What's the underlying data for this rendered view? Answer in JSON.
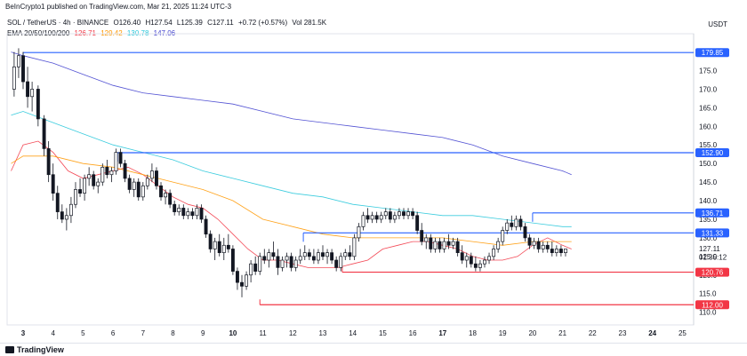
{
  "header": {
    "published": "BeInCrypto1 published on TradingView.com, Mar 21, 2025 11:24 UTC-3",
    "symbol": "SOL / TetherUS · 4h · BINANCE",
    "o_label": "O",
    "o_value": "126.40",
    "h_label": "H",
    "h_value": "127.54",
    "l_label": "L",
    "l_value": "125.39",
    "c_label": "C",
    "c_value": "127.11",
    "change": "+0.72 (+0.57%)",
    "vol": "Vol 281.5K",
    "ema_label": "EMA 20/50/100/200",
    "ema_values": [
      "126.71",
      "129.42",
      "130.78",
      "147.06"
    ],
    "currency": "USDT"
  },
  "footer": {
    "brand": "TradingView"
  },
  "chart_data": {
    "type": "candlestick",
    "x_ticks": [
      "3",
      "4",
      "5",
      "6",
      "7",
      "8",
      "9",
      "10",
      "11",
      "12",
      "13",
      "14",
      "15",
      "16",
      "17",
      "18",
      "19",
      "20",
      "21",
      "22",
      "23",
      "24",
      "25"
    ],
    "bold_x_ticks": [
      "3",
      "10",
      "17",
      "24"
    ],
    "y_ticks": [
      110,
      115,
      120,
      125,
      130,
      135,
      140,
      145,
      150,
      155,
      160,
      165,
      170,
      175
    ],
    "ylim": [
      108,
      183
    ],
    "colors": {
      "up": "#ffffff",
      "down": "#131722",
      "ema20": "#f23645",
      "ema50": "#ff9800",
      "ema100": "#26c6da",
      "ema200": "#3f3fce",
      "resistance": "#2962ff",
      "support": "#f23645"
    },
    "levels": [
      {
        "value": 179.85,
        "label": "179.85",
        "kind": "resistance",
        "x_start": 3.0
      },
      {
        "value": 152.9,
        "label": "152.90",
        "kind": "resistance",
        "x_start": 6.15
      },
      {
        "value": 136.71,
        "label": "136.71",
        "kind": "resistance",
        "x_start": 20.0
      },
      {
        "value": 131.33,
        "label": "131.33",
        "kind": "resistance",
        "x_start": 12.35
      },
      {
        "value": 120.76,
        "label": "120.76",
        "kind": "support",
        "x_start": 13.65
      },
      {
        "value": 112.0,
        "label": "112.00",
        "kind": "support",
        "x_start": 10.9
      }
    ],
    "price_tags": [
      {
        "label": "127.11",
        "value": 127.11
      },
      {
        "label": "01:35:12",
        "value": 124.8
      }
    ],
    "ema": {
      "ema20": {
        "name": "EMA 20",
        "x": [
          2.6,
          3.0,
          3.5,
          4.0,
          4.5,
          5.0,
          5.5,
          6.0,
          6.5,
          7.0,
          7.5,
          8.0,
          8.5,
          9.0,
          9.5,
          10.0,
          10.5,
          11.0,
          11.5,
          12.0,
          12.5,
          13.0,
          13.5,
          14.0,
          14.5,
          15.0,
          15.5,
          16.0,
          16.5,
          17.0,
          17.5,
          18.0,
          18.5,
          19.0,
          19.5,
          20.0,
          20.5,
          21.0,
          21.3
        ],
        "y": [
          148,
          155,
          156,
          153,
          148,
          146,
          147,
          148,
          149,
          147,
          144,
          141,
          139,
          138,
          135,
          131,
          127,
          124,
          124,
          123,
          122,
          122,
          122,
          123,
          124,
          127,
          128,
          129,
          129,
          128,
          127,
          125,
          124,
          124,
          125,
          128,
          130,
          128,
          127
        ]
      },
      "ema50": {
        "name": "EMA 50",
        "x": [
          2.6,
          3.0,
          4.0,
          5.0,
          6.0,
          7.0,
          8.0,
          9.0,
          10.0,
          11.0,
          12.0,
          13.0,
          14.0,
          15.0,
          16.0,
          17.0,
          18.0,
          19.0,
          20.0,
          21.0,
          21.3
        ],
        "y": [
          150,
          152,
          152,
          150,
          149,
          147,
          145,
          143,
          140,
          135,
          133,
          131,
          130,
          130,
          130,
          130,
          129,
          128,
          129,
          129,
          129
        ]
      },
      "ema100": {
        "name": "EMA 100",
        "x": [
          2.6,
          3.0,
          4.0,
          5.0,
          6.0,
          7.0,
          8.0,
          9.0,
          10.0,
          11.0,
          12.0,
          13.0,
          14.0,
          15.0,
          16.0,
          17.0,
          18.0,
          19.0,
          20.0,
          21.0,
          21.3
        ],
        "y": [
          163,
          164,
          161,
          158,
          155,
          153,
          151,
          148,
          146,
          144,
          142,
          141,
          139,
          138,
          137,
          136,
          136,
          135,
          134,
          133,
          133
        ]
      },
      "ema200": {
        "name": "EMA 200",
        "x": [
          2.6,
          3.0,
          4.0,
          5.0,
          6.0,
          7.0,
          8.0,
          9.0,
          10.0,
          11.0,
          12.0,
          13.0,
          14.0,
          15.0,
          16.0,
          17.0,
          18.0,
          19.0,
          20.0,
          21.0,
          21.3
        ],
        "y": [
          180,
          179,
          177,
          174,
          171,
          169,
          168,
          167,
          166,
          164,
          162,
          161,
          160,
          159,
          158,
          157,
          155,
          152,
          150,
          148,
          147
        ]
      }
    },
    "candles_note": "open/high/low/close per 4h bar, x in days of March",
    "candles": [
      [
        2.7,
        170,
        180,
        168,
        176
      ],
      [
        2.85,
        176,
        181,
        173,
        179
      ],
      [
        3.0,
        179,
        180,
        170,
        172
      ],
      [
        3.15,
        172,
        176,
        165,
        168
      ],
      [
        3.3,
        168,
        172,
        164,
        170
      ],
      [
        3.5,
        170,
        171,
        160,
        162
      ],
      [
        3.7,
        162,
        163,
        152,
        154
      ],
      [
        3.85,
        154,
        156,
        145,
        147
      ],
      [
        4.0,
        147,
        150,
        140,
        142
      ],
      [
        4.15,
        142,
        144,
        135,
        137
      ],
      [
        4.3,
        137,
        139,
        134,
        135
      ],
      [
        4.45,
        135,
        138,
        132,
        136
      ],
      [
        4.6,
        136,
        141,
        134,
        139
      ],
      [
        4.75,
        139,
        145,
        138,
        143
      ],
      [
        4.9,
        143,
        146,
        141,
        142
      ],
      [
        5.05,
        142,
        147,
        140,
        146
      ],
      [
        5.2,
        146,
        149,
        144,
        147
      ],
      [
        5.35,
        147,
        148,
        143,
        144
      ],
      [
        5.5,
        144,
        146,
        142,
        145
      ],
      [
        5.65,
        145,
        150,
        144,
        149
      ],
      [
        5.8,
        149,
        151,
        146,
        147
      ],
      [
        5.95,
        147,
        149,
        145,
        148
      ],
      [
        6.1,
        148,
        154,
        147,
        153
      ],
      [
        6.25,
        153,
        154,
        149,
        150
      ],
      [
        6.4,
        150,
        151,
        145,
        146
      ],
      [
        6.55,
        146,
        147,
        142,
        143
      ],
      [
        6.7,
        143,
        146,
        141,
        145
      ],
      [
        6.85,
        145,
        146,
        140,
        141
      ],
      [
        7.0,
        141,
        145,
        140,
        144
      ],
      [
        7.15,
        144,
        147,
        143,
        146
      ],
      [
        7.3,
        146,
        150,
        145,
        148
      ],
      [
        7.45,
        148,
        149,
        143,
        144
      ],
      [
        7.6,
        144,
        145,
        140,
        141
      ],
      [
        7.75,
        141,
        143,
        139,
        142
      ],
      [
        7.9,
        142,
        143,
        138,
        139
      ],
      [
        8.05,
        139,
        140,
        136,
        137
      ],
      [
        8.2,
        137,
        139,
        136,
        138
      ],
      [
        8.35,
        138,
        139,
        135,
        136
      ],
      [
        8.5,
        136,
        138,
        135,
        137
      ],
      [
        8.65,
        137,
        138,
        135,
        136
      ],
      [
        8.8,
        136,
        139,
        135,
        138
      ],
      [
        8.95,
        138,
        139,
        134,
        135
      ],
      [
        9.1,
        135,
        136,
        130,
        131
      ],
      [
        9.25,
        131,
        132,
        126,
        127
      ],
      [
        9.4,
        127,
        130,
        124,
        129
      ],
      [
        9.55,
        129,
        131,
        125,
        126
      ],
      [
        9.7,
        126,
        130,
        124,
        128
      ],
      [
        9.85,
        128,
        131,
        126,
        127
      ],
      [
        10.0,
        127,
        128,
        120,
        121
      ],
      [
        10.15,
        121,
        122,
        116,
        118
      ],
      [
        10.3,
        118,
        120,
        114,
        117
      ],
      [
        10.45,
        117,
        121,
        116,
        120
      ],
      [
        10.6,
        120,
        124,
        118,
        123
      ],
      [
        10.75,
        123,
        125,
        120,
        121
      ],
      [
        10.9,
        121,
        126,
        120,
        125
      ],
      [
        11.05,
        125,
        127,
        123,
        124
      ],
      [
        11.2,
        124,
        127,
        122,
        126
      ],
      [
        11.35,
        126,
        129,
        124,
        125
      ],
      [
        11.5,
        125,
        127,
        120,
        122
      ],
      [
        11.65,
        122,
        125,
        121,
        124
      ],
      [
        11.8,
        124,
        126,
        122,
        125
      ],
      [
        11.95,
        125,
        126,
        121,
        122
      ],
      [
        12.1,
        122,
        125,
        121,
        124
      ],
      [
        12.25,
        124,
        127,
        123,
        125
      ],
      [
        12.4,
        125,
        128,
        124,
        126
      ],
      [
        12.55,
        126,
        127,
        124,
        125
      ],
      [
        12.7,
        125,
        127,
        123,
        124
      ],
      [
        12.85,
        124,
        127,
        123,
        126
      ],
      [
        13.0,
        126,
        128,
        124,
        125
      ],
      [
        13.15,
        125,
        127,
        123,
        126
      ],
      [
        13.3,
        126,
        127,
        123,
        124
      ],
      [
        13.45,
        124,
        125,
        121,
        122
      ],
      [
        13.6,
        122,
        126,
        121,
        125
      ],
      [
        13.75,
        125,
        127,
        124,
        126
      ],
      [
        13.9,
        126,
        128,
        124,
        125
      ],
      [
        14.05,
        125,
        131,
        124,
        130
      ],
      [
        14.2,
        130,
        134,
        129,
        133
      ],
      [
        14.35,
        133,
        137,
        132,
        136
      ],
      [
        14.5,
        136,
        138,
        134,
        135
      ],
      [
        14.65,
        135,
        137,
        134,
        136
      ],
      [
        14.8,
        136,
        137,
        134,
        135
      ],
      [
        14.95,
        135,
        137,
        134,
        136
      ],
      [
        15.1,
        136,
        138,
        135,
        137
      ],
      [
        15.25,
        137,
        138,
        134,
        135
      ],
      [
        15.4,
        135,
        137,
        134,
        136
      ],
      [
        15.55,
        136,
        138,
        135,
        137
      ],
      [
        15.7,
        137,
        138,
        135,
        136
      ],
      [
        15.85,
        136,
        138,
        135,
        137
      ],
      [
        16.0,
        137,
        138,
        135,
        136
      ],
      [
        16.15,
        136,
        137,
        131,
        132
      ],
      [
        16.3,
        132,
        134,
        128,
        129
      ],
      [
        16.45,
        129,
        131,
        127,
        130
      ],
      [
        16.6,
        130,
        131,
        126,
        127
      ],
      [
        16.75,
        127,
        130,
        126,
        129
      ],
      [
        16.9,
        129,
        130,
        126,
        127
      ],
      [
        17.05,
        127,
        130,
        126,
        129
      ],
      [
        17.2,
        129,
        131,
        127,
        128
      ],
      [
        17.35,
        128,
        130,
        127,
        129
      ],
      [
        17.5,
        129,
        130,
        125,
        126
      ],
      [
        17.65,
        126,
        128,
        123,
        124
      ],
      [
        17.8,
        124,
        126,
        122,
        125
      ],
      [
        17.95,
        125,
        126,
        122,
        123
      ],
      [
        18.1,
        123,
        125,
        121,
        122
      ],
      [
        18.25,
        122,
        124,
        121,
        123
      ],
      [
        18.4,
        123,
        125,
        122,
        124
      ],
      [
        18.55,
        124,
        126,
        123,
        125
      ],
      [
        18.7,
        125,
        128,
        124,
        127
      ],
      [
        18.85,
        127,
        130,
        126,
        129
      ],
      [
        19.0,
        129,
        133,
        128,
        132
      ],
      [
        19.15,
        132,
        135,
        131,
        134
      ],
      [
        19.3,
        134,
        136,
        132,
        133
      ],
      [
        19.45,
        133,
        136,
        132,
        135
      ],
      [
        19.6,
        135,
        136,
        132,
        133
      ],
      [
        19.75,
        133,
        134,
        129,
        130
      ],
      [
        19.9,
        130,
        131,
        127,
        128
      ],
      [
        20.05,
        128,
        130,
        127,
        129
      ],
      [
        20.2,
        129,
        130,
        126,
        127
      ],
      [
        20.35,
        127,
        129,
        126,
        128
      ],
      [
        20.5,
        128,
        129,
        126,
        127
      ],
      [
        20.65,
        127,
        129,
        125,
        126
      ],
      [
        20.8,
        126,
        128,
        125,
        127
      ],
      [
        20.95,
        127,
        128,
        125,
        126
      ],
      [
        21.1,
        126,
        127,
        125,
        127
      ]
    ]
  }
}
